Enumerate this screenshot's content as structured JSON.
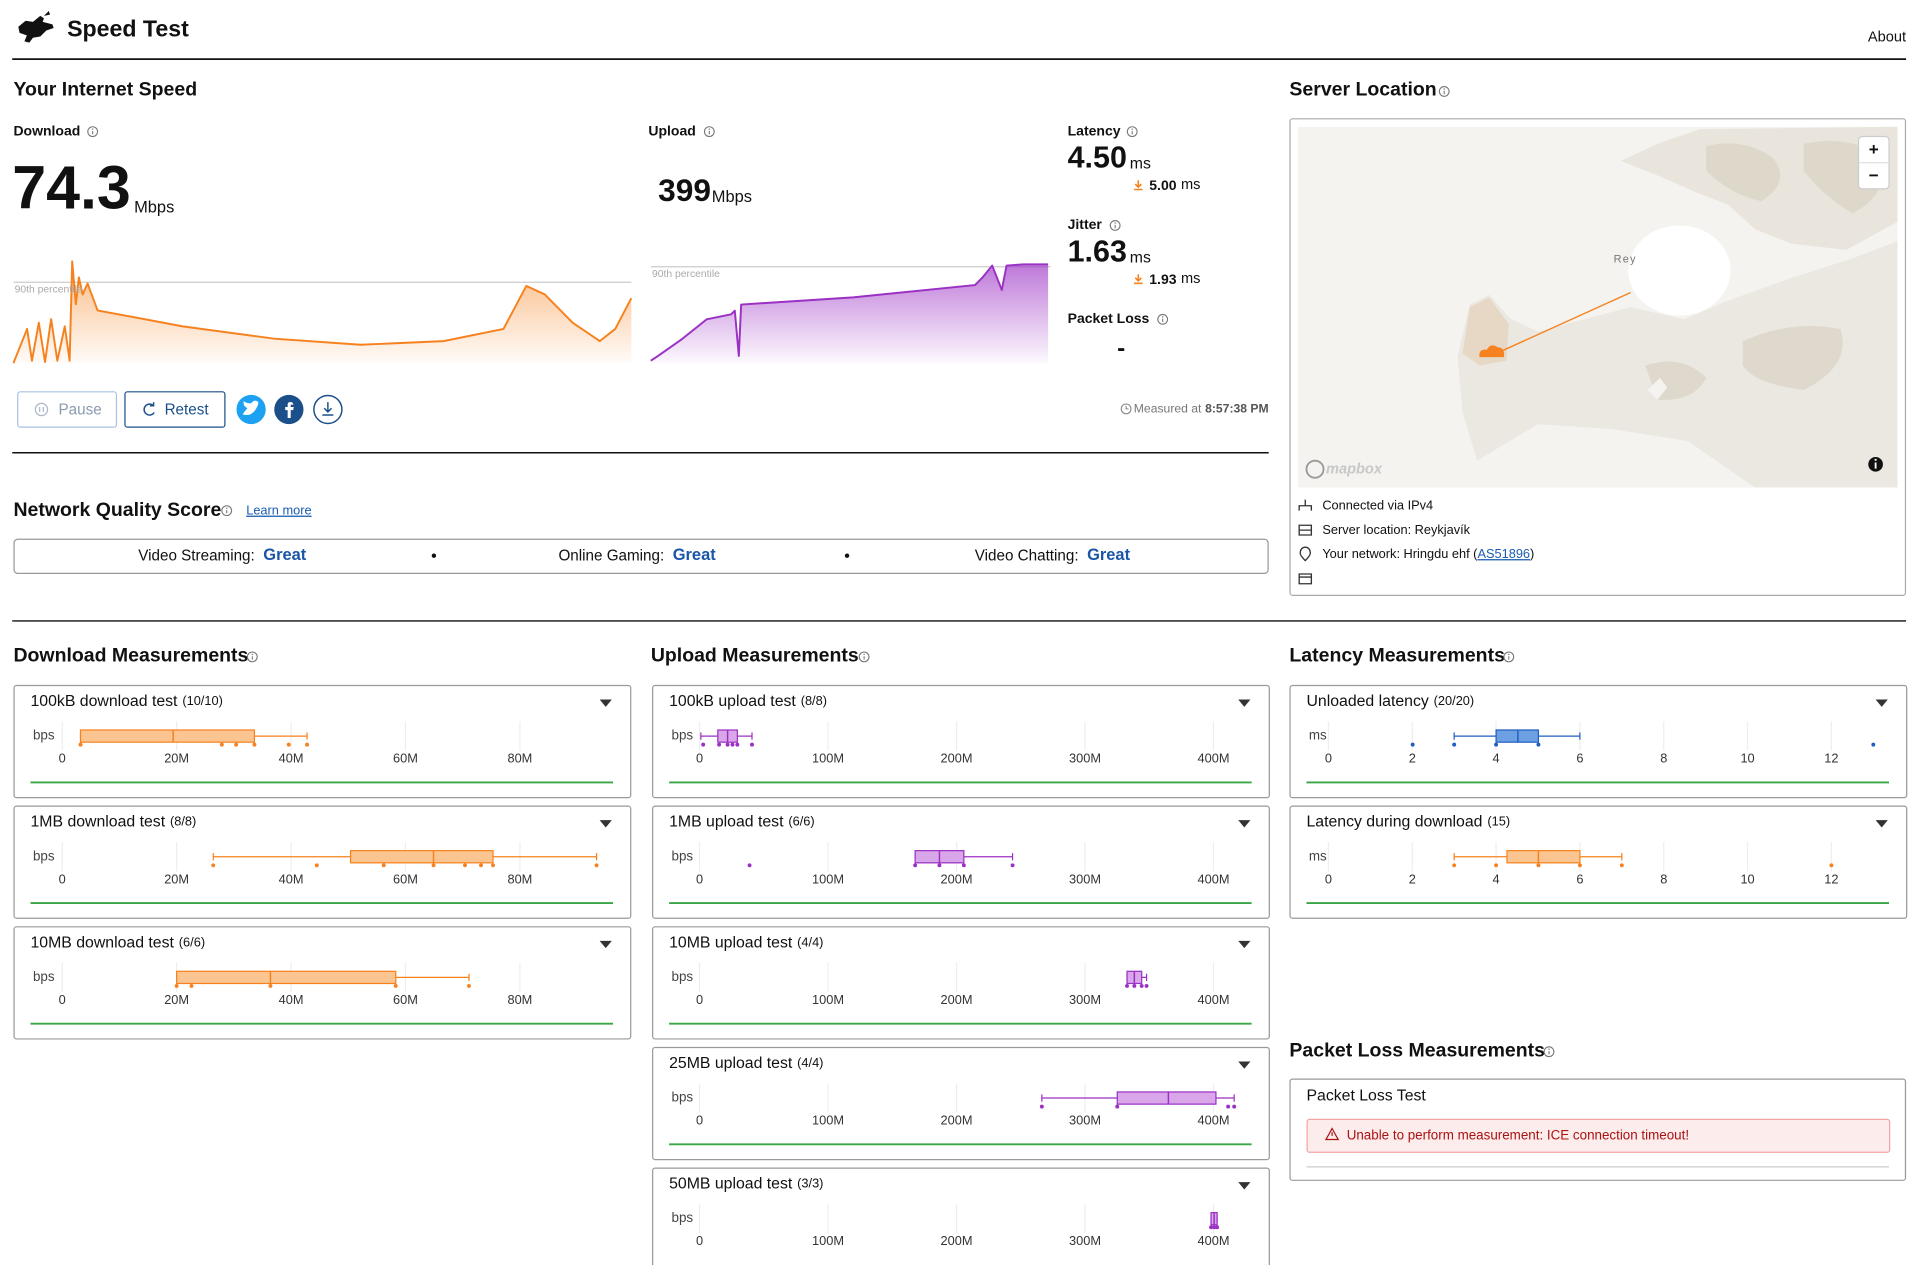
{
  "header": {
    "title": "Speed Test",
    "about": "About"
  },
  "speed": {
    "title": "Your Internet Speed",
    "download": {
      "label": "Download",
      "value": "74.3",
      "unit": "Mbps",
      "color": "#f6821f",
      "x": [
        0,
        2.2,
        3.0,
        4.1,
        5.1,
        6.1,
        7.1,
        8.3,
        9.1,
        9.5,
        10.1,
        10.6,
        11.2,
        12.0,
        13.6,
        27.4,
        42.2,
        56.2,
        69.6,
        79.3,
        83.0,
        86.0,
        90.5,
        94.9,
        97.4,
        100
      ],
      "values": [
        0,
        33.9,
        2.4,
        40,
        1.2,
        43.6,
        2.4,
        36.4,
        2.4,
        100.6,
        58.2,
        84.8,
        67.9,
        78.8,
        52.1,
        36.4,
        24.2,
        18.2,
        21.8,
        33.9,
        76.4,
        67.9,
        40,
        21.8,
        33.9,
        64.2
      ],
      "xlim": [
        0,
        100
      ],
      "ylim": [
        0,
        112
      ],
      "percentile": {
        "label": "90th percentile",
        "value": 80
      }
    },
    "upload": {
      "label": "Upload",
      "value": "399",
      "unit": "Mbps",
      "color": "#9b30c4",
      "x": [
        0,
        1.8,
        7.9,
        14.0,
        20.1,
        21.0,
        22.0,
        22.6,
        50.6,
        81.1,
        82.9,
        85.4,
        87.8,
        89.0,
        93.3,
        99.4
      ],
      "values": [
        10,
        30,
        101,
        182,
        203,
        218,
        30,
        243,
        273,
        324,
        354,
        405,
        304,
        405,
        410,
        410
      ],
      "xlim": [
        0,
        100
      ],
      "ylim": [
        0,
        450
      ],
      "percentile": {
        "label": "90th percentile",
        "value": 400
      }
    },
    "latency": {
      "label": "Latency",
      "value": "4.50",
      "unit": "ms",
      "sub_value": "5.00",
      "sub_unit": "ms"
    },
    "jitter": {
      "label": "Jitter",
      "value": "1.63",
      "unit": "ms",
      "sub_value": "1.93",
      "sub_unit": "ms"
    },
    "packet_loss": {
      "label": "Packet Loss",
      "value": "-"
    },
    "buttons": {
      "pause": "Pause",
      "retest": "Retest"
    },
    "measured": {
      "label": "Measured at",
      "time": "8:57:38 PM"
    }
  },
  "quality": {
    "title": "Network Quality Score",
    "learn_more": "Learn more",
    "items": [
      {
        "label": "Video Streaming:",
        "score": "Great"
      },
      {
        "label": "Online Gaming:",
        "score": "Great"
      },
      {
        "label": "Video Chatting:",
        "score": "Great"
      }
    ]
  },
  "server": {
    "title": "Server Location",
    "map_label": "Rey",
    "attribution": "mapbox",
    "zoom_in": "+",
    "zoom_out": "−",
    "connected": "Connected via IPv4",
    "location": "Server location: Reykjavík",
    "network": {
      "prefix": "Your network: Hringdu ehf (",
      "asn": "AS51896",
      "suffix": ")"
    }
  },
  "measurements": {
    "download": {
      "title": "Download Measurements",
      "box_fill": "#fbc591",
      "box_stroke": "#f6821f",
      "xlim": [
        0,
        95000000
      ],
      "xticks": [
        0,
        {
          "value": 20000000,
          "label": "20M"
        },
        {
          "value": 40000000,
          "label": "40M"
        },
        {
          "value": 60000000,
          "label": "60M"
        },
        {
          "value": 80000000,
          "label": "80M"
        }
      ],
      "cards": [
        {
          "title": "100kB download test",
          "count": "(10/10)",
          "unit": "bps",
          "box": {
            "min": 3200000,
            "q1": 3200000,
            "median": 19400000,
            "q3": 33600000,
            "max": 42800000
          },
          "points": [
            3200000,
            27900000,
            30400000,
            33600000,
            39600000,
            42800000
          ]
        },
        {
          "title": "1MB download test",
          "count": "(8/8)",
          "unit": "bps",
          "box": {
            "min": 26400000,
            "q1": 50400000,
            "median": 64900000,
            "q3": 75300000,
            "max": 93400000
          },
          "points": [
            26400000,
            44500000,
            56200000,
            64900000,
            70400000,
            73200000,
            75300000,
            93400000
          ]
        },
        {
          "title": "10MB download test",
          "count": "(6/6)",
          "unit": "bps",
          "box": {
            "min": 20000000,
            "q1": 20000000,
            "median": 36400000,
            "q3": 58300000,
            "max": 71100000
          },
          "points": [
            20000000,
            22600000,
            36400000,
            58300000,
            71100000
          ]
        }
      ]
    },
    "upload": {
      "title": "Upload Measurements",
      "box_fill": "#d9a6ea",
      "box_stroke": "#9b30c4",
      "xlim": [
        0,
        424000000
      ],
      "xticks": [
        0,
        {
          "value": 100000000,
          "label": "100M"
        },
        {
          "value": 200000000,
          "label": "200M"
        },
        {
          "value": 300000000,
          "label": "300M"
        },
        {
          "value": 400000000,
          "label": "400M"
        }
      ],
      "cards": [
        {
          "title": "100kB upload test",
          "count": "(8/8)",
          "unit": "bps",
          "box": {
            "min": 1000000,
            "q1": 14200000,
            "median": 21800000,
            "q3": 29400000,
            "max": 40800000
          },
          "points": [
            2800000,
            15200000,
            21800000,
            25600000,
            29400000,
            40800000
          ]
        },
        {
          "title": "1MB upload test",
          "count": "(6/6)",
          "unit": "bps",
          "box": {
            "min": 167800000,
            "q1": 167800000,
            "median": 186700000,
            "q3": 205700000,
            "max": 243600000
          },
          "points": [
            38900000,
            167800000,
            186700000,
            205700000,
            243600000
          ]
        },
        {
          "title": "10MB upload test",
          "count": "(4/4)",
          "unit": "bps",
          "box": {
            "min": 332700000,
            "q1": 332700000,
            "median": 338400000,
            "q3": 344100000,
            "max": 347900000
          },
          "points": [
            332700000,
            338400000,
            344100000,
            347900000
          ]
        },
        {
          "title": "25MB upload test",
          "count": "(4/4)",
          "unit": "bps",
          "box": {
            "min": 266400000,
            "q1": 325100000,
            "median": 364900000,
            "q3": 401900000,
            "max": 416100000
          },
          "points": [
            266400000,
            325100000,
            411400000,
            416100000
          ]
        },
        {
          "title": "50MB upload test",
          "count": "(3/3)",
          "unit": "bps",
          "box": {
            "min": 398100000,
            "q1": 398100000,
            "median": 400500000,
            "q3": 402800000,
            "max": 402800000
          },
          "points": [
            398100000,
            400500000,
            402800000
          ]
        }
      ]
    },
    "latency": {
      "title": "Latency Measurements",
      "box_fill": "#6d9fe3",
      "box_stroke": "#1f5fbf",
      "xlim": [
        0,
        13.2
      ],
      "xticks": [
        0,
        2,
        4,
        6,
        8,
        10,
        12
      ],
      "cards": [
        {
          "title": "Unloaded latency",
          "count": "(20/20)",
          "unit": "ms",
          "box": {
            "min": 3.0,
            "q1": 4.0,
            "median": 4.52,
            "q3": 5.01,
            "max": 6.0
          },
          "points": [
            2.01,
            3.0,
            4.0,
            5.01,
            13.0
          ]
        },
        {
          "title": "Latency during download",
          "count": "(15)",
          "unit": "ms",
          "box": {
            "min": 3.0,
            "q1": 4.26,
            "median": 5.01,
            "q3": 6.0,
            "max": 7.0
          },
          "points": [
            3.0,
            4.0,
            5.01,
            6.0,
            7.0,
            12.0
          ],
          "color_override": "download"
        }
      ]
    },
    "packet_loss": {
      "title": "Packet Loss Measurements",
      "test": "Packet Loss Test",
      "error": "Unable to perform measurement: ICE connection timeout!"
    }
  }
}
